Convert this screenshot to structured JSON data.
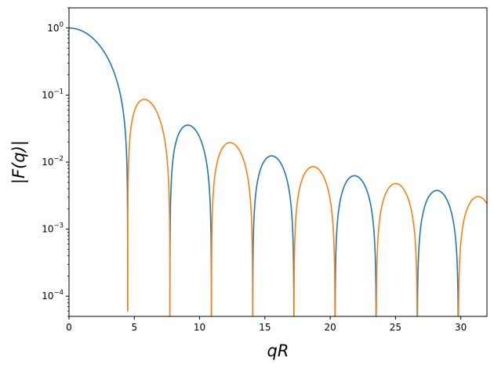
{
  "chart_data": {
    "type": "line",
    "title": "",
    "xlabel": "qR",
    "ylabel": "|F(q)|",
    "xscale": "linear",
    "yscale": "log",
    "xlim": [
      0,
      32
    ],
    "ylim": [
      5e-05,
      2
    ],
    "grid": false,
    "legend": "none",
    "x_ticks": [
      {
        "value": 0,
        "label": "0"
      },
      {
        "value": 5,
        "label": "5"
      },
      {
        "value": 10,
        "label": "10"
      },
      {
        "value": 15,
        "label": "15"
      },
      {
        "value": 20,
        "label": "20"
      },
      {
        "value": 25,
        "label": "25"
      },
      {
        "value": 30,
        "label": "30"
      }
    ],
    "y_ticks": [
      {
        "value": 0.0001,
        "base": "10",
        "exp": "−4"
      },
      {
        "value": 0.001,
        "base": "10",
        "exp": "−3"
      },
      {
        "value": 0.01,
        "base": "10",
        "exp": "−2"
      },
      {
        "value": 0.1,
        "base": "10",
        "exp": "−1"
      },
      {
        "value": 1,
        "base": "10",
        "exp": "0"
      }
    ],
    "function": "|3 (sin(qR) - qR cos(qR)) / (qR)^3|",
    "series": [
      {
        "sign": "positive",
        "color": "#1f77b4",
        "segments": [
          [
            0,
            4.493
          ],
          [
            7.725,
            10.904
          ],
          [
            14.066,
            17.221
          ],
          [
            20.371,
            23.519
          ],
          [
            26.666,
            29.812
          ]
        ]
      },
      {
        "sign": "negative",
        "color": "#ff7f0e",
        "segments": [
          [
            4.493,
            7.725
          ],
          [
            10.904,
            14.066
          ],
          [
            17.221,
            20.371
          ],
          [
            23.519,
            26.666
          ],
          [
            29.812,
            32
          ]
        ]
      }
    ],
    "colors": {
      "axis": "#000000",
      "background": "#ffffff"
    }
  }
}
